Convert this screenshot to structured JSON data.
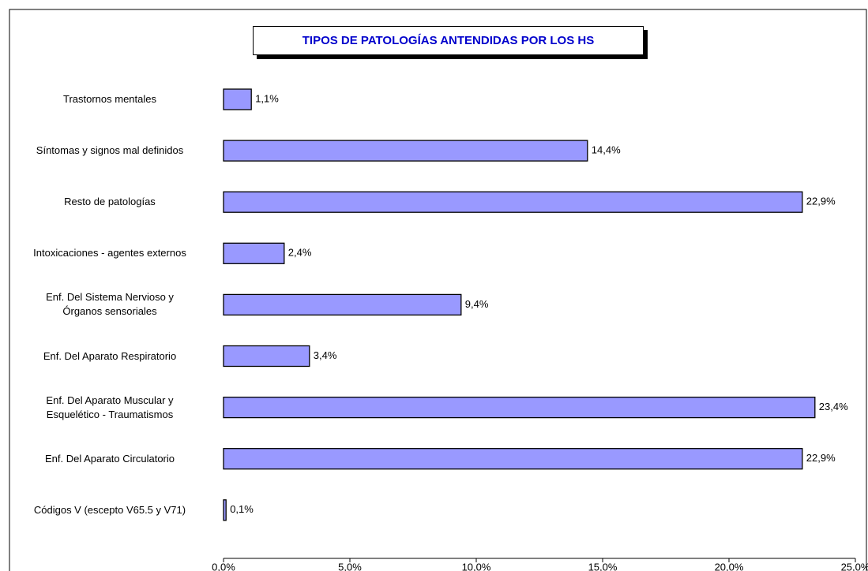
{
  "chart_data": {
    "type": "hbar",
    "title": "TIPOS DE PATOLOGÍAS ANTENDIDAS POR LOS HS",
    "categories": [
      "Trastornos mentales",
      "Síntomas y signos mal definidos",
      "Resto de patologías",
      "Intoxicaciones - agentes externos",
      "Enf. Del Sistema Nervioso y\nÓrganos sensoriales",
      "Enf. Del Aparato Respiratorio",
      "Enf. Del Aparato Muscular y\nEsquelético - Traumatismos",
      "Enf. Del Aparato Circulatorio",
      "Códigos V (escepto V65.5 y V71)"
    ],
    "values": [
      1.1,
      14.4,
      22.9,
      2.4,
      9.4,
      3.4,
      23.4,
      22.9,
      0.1
    ],
    "value_labels": [
      "1,1%",
      "14,4%",
      "22,9%",
      "2,4%",
      "9,4%",
      "3,4%",
      "23,4%",
      "22,9%",
      "0,1%"
    ],
    "color": "#9999ff",
    "xlim": [
      0,
      25
    ],
    "xticks": [
      {
        "value": 0,
        "label": "0,0%"
      },
      {
        "value": 5,
        "label": "5,0%"
      },
      {
        "value": 10,
        "label": "10,0%"
      },
      {
        "value": 15,
        "label": "15,0%"
      },
      {
        "value": 20,
        "label": "20,0%"
      },
      {
        "value": 25,
        "label": "25,0%"
      }
    ]
  }
}
